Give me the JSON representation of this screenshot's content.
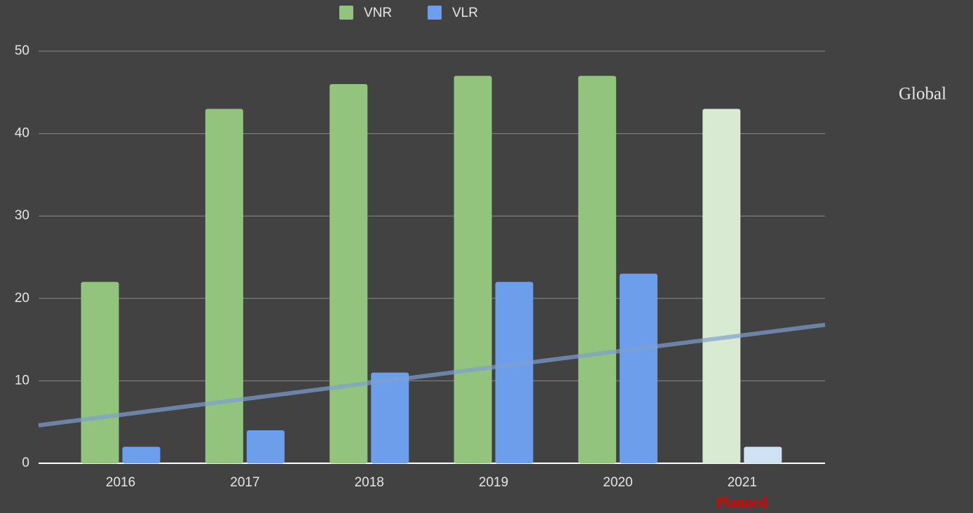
{
  "chart_data": {
    "type": "bar",
    "categories": [
      "2016",
      "2017",
      "2018",
      "2019",
      "2020",
      "2021"
    ],
    "series": [
      {
        "name": "VNR",
        "color": "#93c47d",
        "values": [
          22,
          43,
          46,
          47,
          47,
          43
        ],
        "point_colors": [
          "#93c47d",
          "#93c47d",
          "#93c47d",
          "#93c47d",
          "#93c47d",
          "#d9ead3"
        ]
      },
      {
        "name": "VLR",
        "color": "#6d9eeb",
        "values": [
          2,
          4,
          11,
          22,
          23,
          2
        ],
        "point_colors": [
          "#6d9eeb",
          "#6d9eeb",
          "#6d9eeb",
          "#6d9eeb",
          "#6d9eeb",
          "#cfe2f3"
        ]
      }
    ],
    "trendline": [
      4.6,
      16.8
    ],
    "trendline_color": "#7f9fd0",
    "ylim": [
      0,
      50
    ],
    "yticks": [
      0,
      10,
      20,
      30,
      40,
      50
    ],
    "grid": true,
    "legend": "top",
    "annotation": "Planned",
    "side_label": "Global"
  }
}
